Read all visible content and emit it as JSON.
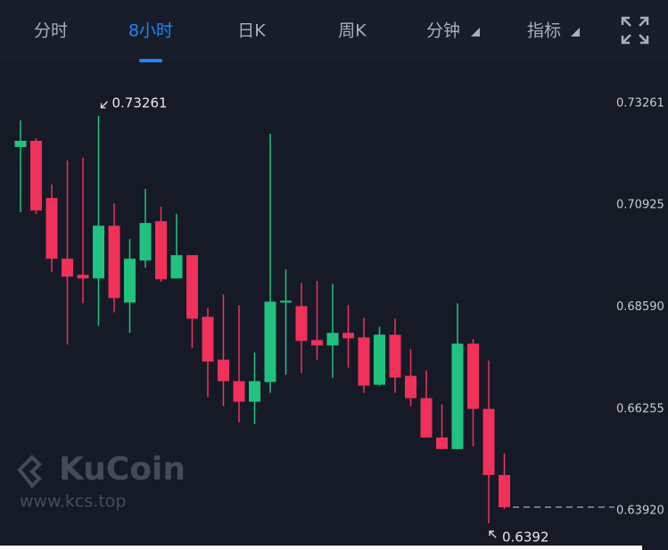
{
  "tabs": {
    "items": [
      "分时",
      "8小时",
      "日K",
      "周K",
      "分钟",
      "指标"
    ],
    "active": 1
  },
  "watermark": {
    "brand": "KuCoin",
    "site": "www.kcs.top"
  },
  "chart_data": {
    "type": "candlestick",
    "open": [
      0.72544,
      0.72687,
      0.71376,
      0.69984,
      0.69615,
      0.69533,
      0.70741,
      0.6898,
      0.69943,
      0.70844,
      0.69533,
      0.70066,
      0.68652,
      0.67669,
      0.67178,
      0.66707,
      0.67157,
      0.6898,
      0.68898,
      0.6812,
      0.67997,
      0.68284,
      0.68181,
      0.67096,
      0.68243,
      0.67301,
      0.66788,
      0.65887,
      0.65621,
      0.68038,
      0.66543,
      0.65027
    ],
    "high": [
      0.73158,
      0.72749,
      0.71684,
      0.72237,
      0.72298,
      0.73261,
      0.71254,
      0.70434,
      0.71581,
      0.71172,
      0.71008,
      0.70066,
      0.68857,
      0.69164,
      0.68919,
      0.67833,
      0.72851,
      0.69738,
      0.69431,
      0.69472,
      0.6941,
      0.68919,
      0.68632,
      0.68427,
      0.68611,
      0.67915,
      0.67423,
      0.66645,
      0.6896,
      0.6814,
      0.67649,
      0.65519
    ],
    "low": [
      0.71049,
      0.71008,
      0.69676,
      0.68017,
      0.6896,
      0.68447,
      0.68755,
      0.68284,
      0.69779,
      0.69451,
      0.69533,
      0.67935,
      0.66809,
      0.66604,
      0.66235,
      0.66194,
      0.66911,
      0.67321,
      0.67362,
      0.67669,
      0.6726,
      0.67485,
      0.66911,
      0.67075,
      0.66911,
      0.66604,
      0.65887,
      0.65621,
      0.65621,
      0.65682,
      0.6392,
      0.64249
    ],
    "close": [
      0.72687,
      0.7109,
      0.69984,
      0.69574,
      0.69533,
      0.70741,
      0.69082,
      0.69984,
      0.70803,
      0.69513,
      0.70066,
      0.68611,
      0.67628,
      0.67178,
      0.66707,
      0.67178,
      0.69001,
      0.69021,
      0.68099,
      0.67997,
      0.68284,
      0.68161,
      0.67075,
      0.68243,
      0.6726,
      0.66788,
      0.65887,
      0.65621,
      0.68038,
      0.66543,
      0.65027,
      0.6429
    ],
    "up_color": "#21c27f",
    "down_color": "#f0315a",
    "ylim": [
      0.6341,
      0.7428
    ],
    "yticks": [
      0.73261,
      0.70925,
      {
        "value": 0.6859,
        "label": "0.68590"
      },
      0.66255,
      {
        "value": 0.6392,
        "label": "0.63920"
      }
    ]
  }
}
